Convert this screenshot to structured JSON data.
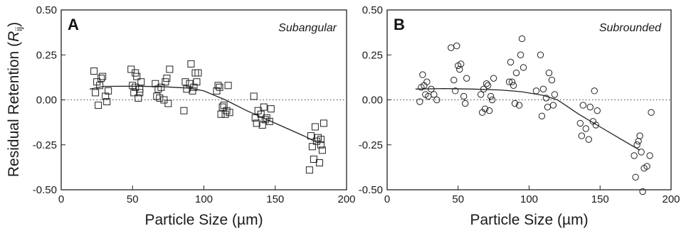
{
  "ylabel": {
    "prefix": "Residual Retention (",
    "var": "R",
    "sub": "ij",
    "suffix": ")"
  },
  "chart_data": [
    {
      "type": "scatter",
      "panel": "A",
      "note": "Subangular",
      "marker": "square",
      "xlabel": "Particle Size (µm)",
      "xlim": [
        0,
        200
      ],
      "ylim": [
        -0.5,
        0.5
      ],
      "xticks": [
        0,
        50,
        100,
        150,
        200
      ],
      "yticks": [
        -0.5,
        -0.25,
        0.0,
        0.25,
        0.5
      ],
      "ytick_labels": [
        "-0.50",
        "-0.25",
        "0.00",
        "0.25",
        "0.50"
      ],
      "reference_line_y": 0,
      "points": [
        [
          23,
          0.16
        ],
        [
          24,
          0.04
        ],
        [
          25,
          0.1
        ],
        [
          26,
          -0.03
        ],
        [
          27,
          0.08
        ],
        [
          28,
          0.12
        ],
        [
          29,
          0.13
        ],
        [
          31,
          0.02
        ],
        [
          32,
          -0.01
        ],
        [
          33,
          0.05
        ],
        [
          49,
          0.17
        ],
        [
          50,
          0.08
        ],
        [
          51,
          0.04
        ],
        [
          52,
          0.07
        ],
        [
          52,
          0.15
        ],
        [
          53,
          0.13
        ],
        [
          54,
          0.01
        ],
        [
          55,
          0.06
        ],
        [
          55,
          0.04
        ],
        [
          56,
          0.1
        ],
        [
          66,
          0.09
        ],
        [
          67,
          0.02
        ],
        [
          68,
          0.06
        ],
        [
          69,
          0.01
        ],
        [
          70,
          0.07
        ],
        [
          72,
          0.0
        ],
        [
          73,
          0.1
        ],
        [
          74,
          0.12
        ],
        [
          75,
          -0.02
        ],
        [
          76,
          0.17
        ],
        [
          86,
          -0.06
        ],
        [
          87,
          0.1
        ],
        [
          88,
          0.06
        ],
        [
          90,
          0.09
        ],
        [
          91,
          0.2
        ],
        [
          92,
          0.05
        ],
        [
          93,
          0.07
        ],
        [
          94,
          0.15
        ],
        [
          95,
          0.1
        ],
        [
          96,
          0.15
        ],
        [
          109,
          0.05
        ],
        [
          110,
          0.08
        ],
        [
          111,
          0.07
        ],
        [
          112,
          -0.08
        ],
        [
          113,
          -0.04
        ],
        [
          114,
          -0.03
        ],
        [
          115,
          -0.08
        ],
        [
          116,
          -0.06
        ],
        [
          117,
          0.08
        ],
        [
          118,
          -0.07
        ],
        [
          135,
          0.02
        ],
        [
          136,
          -0.1
        ],
        [
          137,
          -0.13
        ],
        [
          138,
          -0.06
        ],
        [
          140,
          -0.08
        ],
        [
          141,
          -0.14
        ],
        [
          142,
          -0.04
        ],
        [
          143,
          -0.11
        ],
        [
          144,
          -0.1
        ],
        [
          146,
          -0.12
        ],
        [
          147,
          -0.05
        ],
        [
          174,
          -0.39
        ],
        [
          175,
          -0.2
        ],
        [
          176,
          -0.26
        ],
        [
          177,
          -0.33
        ],
        [
          178,
          -0.15
        ],
        [
          179,
          -0.23
        ],
        [
          180,
          -0.21
        ],
        [
          181,
          -0.35
        ],
        [
          182,
          -0.22
        ],
        [
          183,
          -0.28
        ],
        [
          184,
          -0.13
        ],
        [
          182,
          -0.25
        ]
      ],
      "fit_line": {
        "x": [
          20,
          30,
          50,
          70,
          90,
          100,
          115,
          130,
          150,
          170,
          180
        ],
        "y": [
          0.06,
          0.075,
          0.076,
          0.074,
          0.065,
          0.05,
          0.0,
          -0.06,
          -0.13,
          -0.2,
          -0.24
        ]
      }
    },
    {
      "type": "scatter",
      "panel": "B",
      "note": "Subrounded",
      "marker": "circle",
      "xlabel": "Particle Size (µm)",
      "xlim": [
        0,
        200
      ],
      "ylim": [
        -0.5,
        0.5
      ],
      "xticks": [
        0,
        50,
        100,
        150,
        200
      ],
      "yticks": [
        -0.5,
        -0.25,
        0.0,
        0.25,
        0.5
      ],
      "ytick_labels": [
        "-0.50",
        "-0.25",
        "0.00",
        "0.25",
        "0.50"
      ],
      "reference_line_y": 0,
      "points": [
        [
          23,
          -0.01
        ],
        [
          24,
          0.07
        ],
        [
          25,
          0.14
        ],
        [
          26,
          0.08
        ],
        [
          27,
          0.03
        ],
        [
          28,
          0.1
        ],
        [
          29,
          0.02
        ],
        [
          31,
          0.06
        ],
        [
          33,
          0.03
        ],
        [
          35,
          0.0
        ],
        [
          45,
          0.29
        ],
        [
          47,
          0.11
        ],
        [
          48,
          0.05
        ],
        [
          49,
          0.3
        ],
        [
          50,
          0.19
        ],
        [
          51,
          0.17
        ],
        [
          52,
          0.2
        ],
        [
          54,
          0.02
        ],
        [
          55,
          -0.02
        ],
        [
          56,
          0.12
        ],
        [
          66,
          0.03
        ],
        [
          67,
          -0.07
        ],
        [
          68,
          0.06
        ],
        [
          69,
          -0.05
        ],
        [
          70,
          0.09
        ],
        [
          71,
          0.08
        ],
        [
          72,
          -0.06
        ],
        [
          73,
          0.02
        ],
        [
          74,
          0.0
        ],
        [
          75,
          0.12
        ],
        [
          86,
          0.1
        ],
        [
          87,
          0.21
        ],
        [
          88,
          0.1
        ],
        [
          89,
          0.08
        ],
        [
          90,
          -0.02
        ],
        [
          91,
          0.15
        ],
        [
          93,
          -0.03
        ],
        [
          94,
          0.25
        ],
        [
          95,
          0.34
        ],
        [
          96,
          0.18
        ],
        [
          105,
          0.05
        ],
        [
          108,
          0.25
        ],
        [
          109,
          -0.09
        ],
        [
          110,
          0.06
        ],
        [
          112,
          0.01
        ],
        [
          113,
          -0.04
        ],
        [
          114,
          0.15
        ],
        [
          116,
          0.11
        ],
        [
          117,
          -0.03
        ],
        [
          118,
          0.03
        ],
        [
          136,
          -0.13
        ],
        [
          137,
          -0.2
        ],
        [
          138,
          -0.03
        ],
        [
          140,
          -0.16
        ],
        [
          142,
          -0.22
        ],
        [
          143,
          -0.04
        ],
        [
          145,
          -0.12
        ],
        [
          146,
          0.05
        ],
        [
          147,
          -0.14
        ],
        [
          148,
          -0.06
        ],
        [
          174,
          -0.31
        ],
        [
          175,
          -0.43
        ],
        [
          176,
          -0.25
        ],
        [
          177,
          -0.23
        ],
        [
          178,
          -0.2
        ],
        [
          179,
          -0.29
        ],
        [
          180,
          -0.51
        ],
        [
          181,
          -0.38
        ],
        [
          183,
          -0.37
        ],
        [
          185,
          -0.31
        ],
        [
          186,
          -0.07
        ]
      ],
      "fit_line": {
        "x": [
          20,
          40,
          60,
          80,
          95,
          110,
          120,
          135,
          150,
          165,
          178
        ],
        "y": [
          0.06,
          0.063,
          0.06,
          0.055,
          0.045,
          0.025,
          0.0,
          -0.08,
          -0.15,
          -0.22,
          -0.28
        ]
      }
    }
  ]
}
